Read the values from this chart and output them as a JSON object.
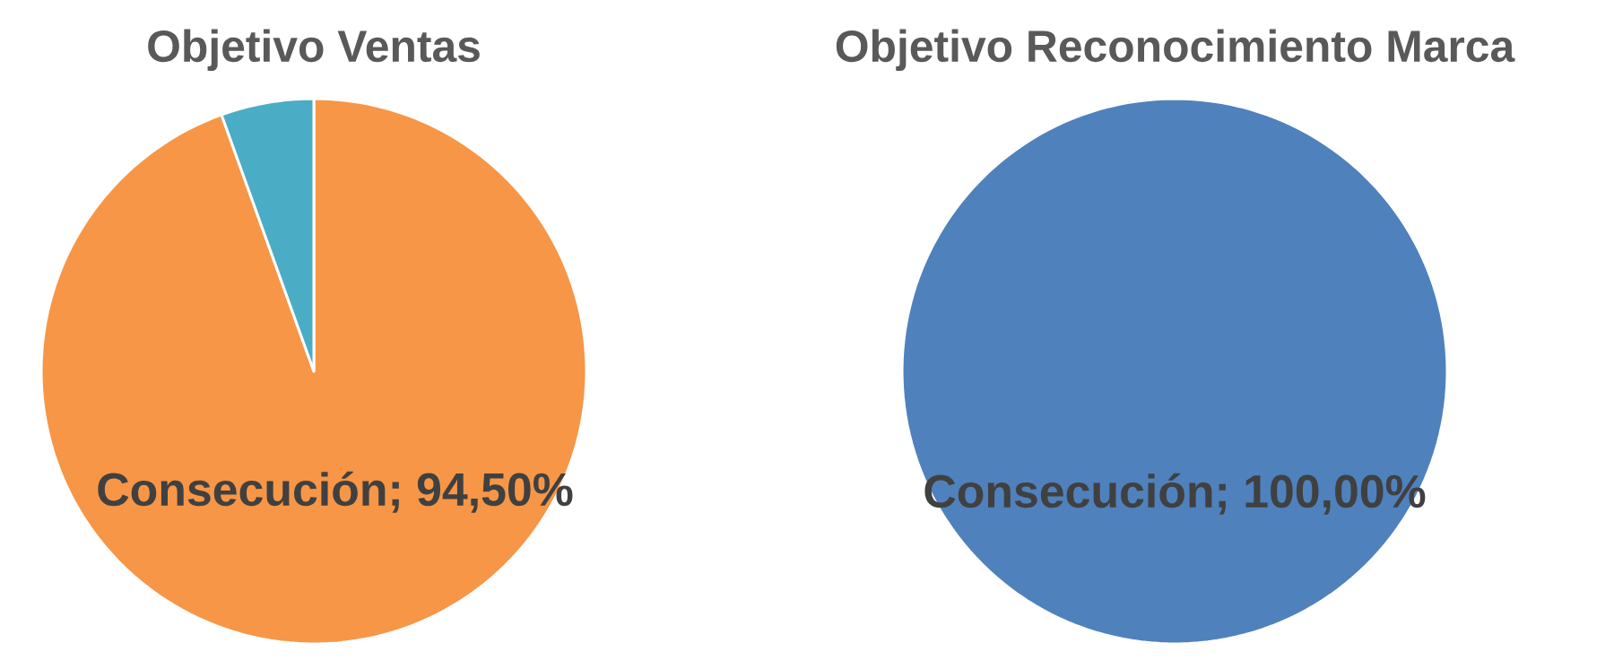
{
  "chart_data": [
    {
      "type": "pie",
      "title": "Objetivo Ventas",
      "categories": [
        null,
        null
      ],
      "values": [
        94.5,
        5.5
      ],
      "colors": [
        "#f79646",
        "#4bacc6"
      ],
      "value_labels": [
        "Consecución; 94,50%",
        null
      ]
    },
    {
      "type": "pie",
      "title": "Objetivo Reconocimiento Marca",
      "categories": [
        null
      ],
      "values": [
        100
      ],
      "colors": [
        "#4f81bd"
      ],
      "value_labels": [
        "Consecución; 100,00%"
      ]
    }
  ]
}
